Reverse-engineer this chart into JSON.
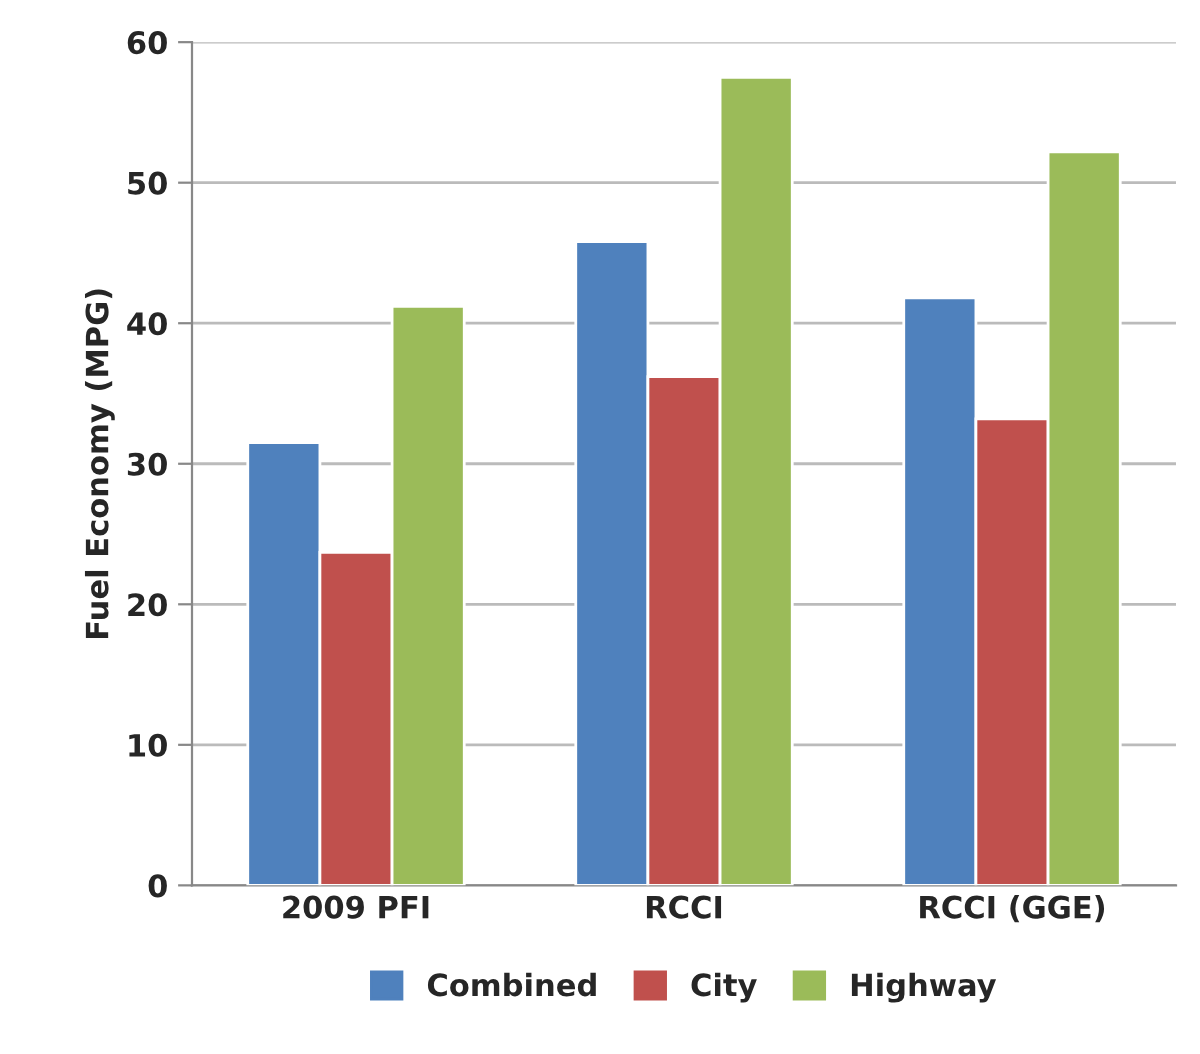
{
  "chart_data": {
    "type": "bar",
    "ylabel": "Fuel Economy (MPG)",
    "categories": [
      "2009 PFI",
      "RCCI",
      "RCCI (GGE)"
    ],
    "series": [
      {
        "name": "Combined",
        "color": "#4f81bd",
        "values": [
          31.5,
          45.8,
          41.8
        ]
      },
      {
        "name": "City",
        "color": "#c0504d",
        "values": [
          23.7,
          36.2,
          33.2
        ]
      },
      {
        "name": "Highway",
        "color": "#9bbb59",
        "values": [
          41.2,
          57.5,
          52.2
        ]
      }
    ],
    "ylim": [
      0,
      60
    ],
    "yticks": [
      0,
      10,
      20,
      30,
      40,
      50,
      60
    ],
    "grid": "y",
    "legend": "bottom"
  }
}
